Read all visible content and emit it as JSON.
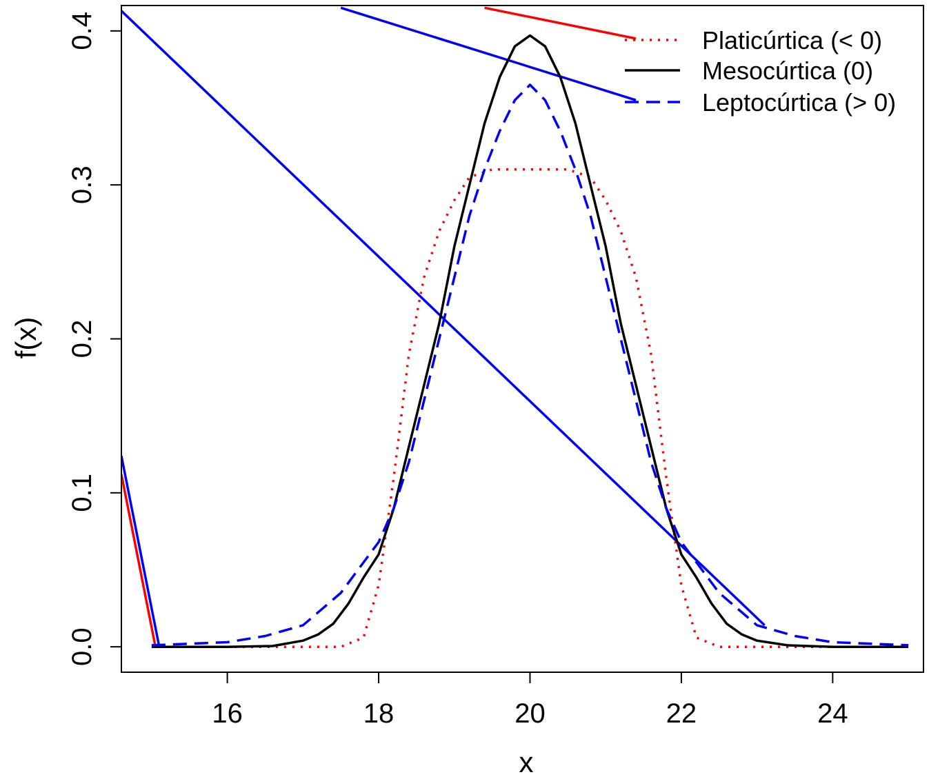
{
  "chart_data": {
    "type": "line",
    "xlabel": "x",
    "ylabel": "f(x)",
    "xlim": [
      14.6,
      25.2
    ],
    "ylim": [
      -0.0165,
      0.4165
    ],
    "x_ticks": [
      16,
      18,
      20,
      22,
      24
    ],
    "x_tick_labels": [
      "16",
      "18",
      "20",
      "22",
      "24"
    ],
    "y_ticks": [
      0.0,
      0.1,
      0.2,
      0.3,
      0.4
    ],
    "y_tick_labels": [
      "0.0",
      "0.1",
      "0.2",
      "0.3",
      "0.4"
    ],
    "grid": false,
    "legend_position": "top-right",
    "series": [
      {
        "name": "Platicúrtica (< 0)",
        "color": "#ff0000",
        "dash": "dotted",
        "x": [
          15.0,
          16.0,
          17.0,
          17.5,
          17.8,
          18.0,
          18.2,
          18.4,
          18.6,
          18.8,
          19.0,
          19.2,
          19.5,
          20.0,
          20.5,
          20.8,
          21.0,
          21.2,
          21.4,
          21.6,
          21.8,
          22.0,
          22.2,
          22.5,
          23.0,
          24.0,
          25.0
        ],
        "y": [
          0.0,
          0.0,
          0.0,
          0.0,
          0.006,
          0.04,
          0.11,
          0.19,
          0.24,
          0.27,
          0.29,
          0.305,
          0.31,
          0.31,
          0.31,
          0.305,
          0.29,
          0.27,
          0.24,
          0.19,
          0.11,
          0.04,
          0.006,
          0.0,
          0.0,
          0.0,
          0.0
        ]
      },
      {
        "name": "Mesocúrtica (0)",
        "color": "#000000",
        "dash": "solid",
        "x": [
          15.0,
          16.0,
          16.6,
          17.0,
          17.2,
          17.4,
          17.6,
          17.8,
          18.0,
          18.2,
          18.4,
          18.6,
          18.8,
          19.0,
          19.2,
          19.4,
          19.6,
          19.8,
          20.0,
          20.2,
          20.4,
          20.6,
          20.8,
          21.0,
          21.2,
          21.4,
          21.6,
          21.8,
          22.0,
          22.2,
          22.4,
          22.6,
          22.8,
          23.0,
          23.4,
          24.0,
          25.0
        ],
        "y": [
          0.0,
          0.0,
          0.0005,
          0.004,
          0.008,
          0.015,
          0.028,
          0.045,
          0.06,
          0.09,
          0.13,
          0.17,
          0.21,
          0.26,
          0.3,
          0.34,
          0.37,
          0.39,
          0.397,
          0.39,
          0.37,
          0.34,
          0.3,
          0.26,
          0.21,
          0.17,
          0.13,
          0.09,
          0.06,
          0.045,
          0.028,
          0.015,
          0.008,
          0.004,
          0.001,
          0.0,
          0.0
        ]
      },
      {
        "name": "Leptocúrtica (> 0)",
        "color": "#0000ff",
        "dash": "dashed",
        "x": [
          15.0,
          16.0,
          16.5,
          17.0,
          17.5,
          18.0,
          18.2,
          18.4,
          18.6,
          18.8,
          19.0,
          19.2,
          19.4,
          19.6,
          19.8,
          20.0,
          20.2,
          20.4,
          20.6,
          20.8,
          21.0,
          21.2,
          21.4,
          21.6,
          21.8,
          22.0,
          22.5,
          23.0,
          23.5,
          24.0,
          25.0
        ],
        "y": [
          0.001,
          0.003,
          0.007,
          0.014,
          0.035,
          0.068,
          0.09,
          0.12,
          0.16,
          0.2,
          0.24,
          0.28,
          0.31,
          0.335,
          0.355,
          0.365,
          0.355,
          0.335,
          0.31,
          0.28,
          0.24,
          0.2,
          0.16,
          0.12,
          0.09,
          0.068,
          0.035,
          0.014,
          0.007,
          0.003,
          0.001
        ]
      }
    ],
    "overlay_lines": [
      {
        "color": "#ff0000",
        "x": [
          19.4,
          21.4
        ],
        "y": [
          0.415,
          0.395
        ]
      },
      {
        "color": "#0000ff",
        "x": [
          17.5,
          21.4
        ],
        "y": [
          0.415,
          0.355
        ]
      },
      {
        "color": "#0000ff",
        "x": [
          14.6,
          23.1
        ],
        "y": [
          0.413,
          0.014
        ]
      },
      {
        "color": "#ff0000",
        "x": [
          14.6,
          15.05
        ],
        "y": [
          0.112,
          0.0
        ]
      },
      {
        "color": "#0000ff",
        "x": [
          14.6,
          15.1
        ],
        "y": [
          0.124,
          0.0
        ]
      }
    ]
  }
}
